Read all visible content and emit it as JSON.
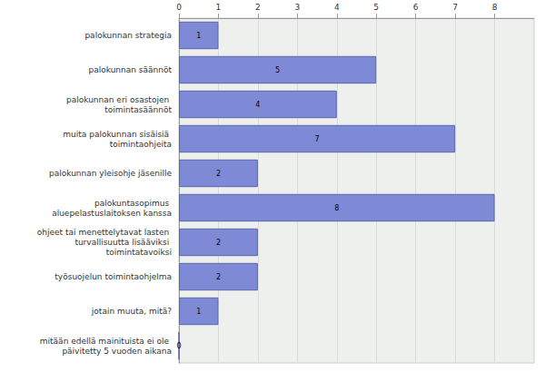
{
  "chart_data": {
    "type": "bar",
    "orientation": "horizontal",
    "categories": [
      "palokunnan strategia",
      "palokunnan säännöt",
      "palokunnan eri osastojen toimintasäännöt",
      "muita palokunnan sisäisiä toimintaohjeita",
      "palokunnan yleisohje jäsenille",
      "palokuntasopimus aluepelastuslaitoksen kanssa",
      "ohjeet tai menettelytavat lasten turvallisuutta lisääviksi toimintatavoiksi",
      "työsuojelun toimintaohjelma",
      "jotain muuta, mitä?",
      "mitään edellä mainituista ei ole päivitetty 5 vuoden aikana"
    ],
    "values": [
      1,
      5,
      4,
      7,
      2,
      8,
      2,
      2,
      1,
      0
    ],
    "color": "#7f8ad6",
    "xlim": [
      0,
      9
    ],
    "xticks": [
      0,
      1,
      2,
      3,
      4,
      5,
      6,
      7,
      8
    ],
    "grid": true,
    "data_labels": true
  }
}
